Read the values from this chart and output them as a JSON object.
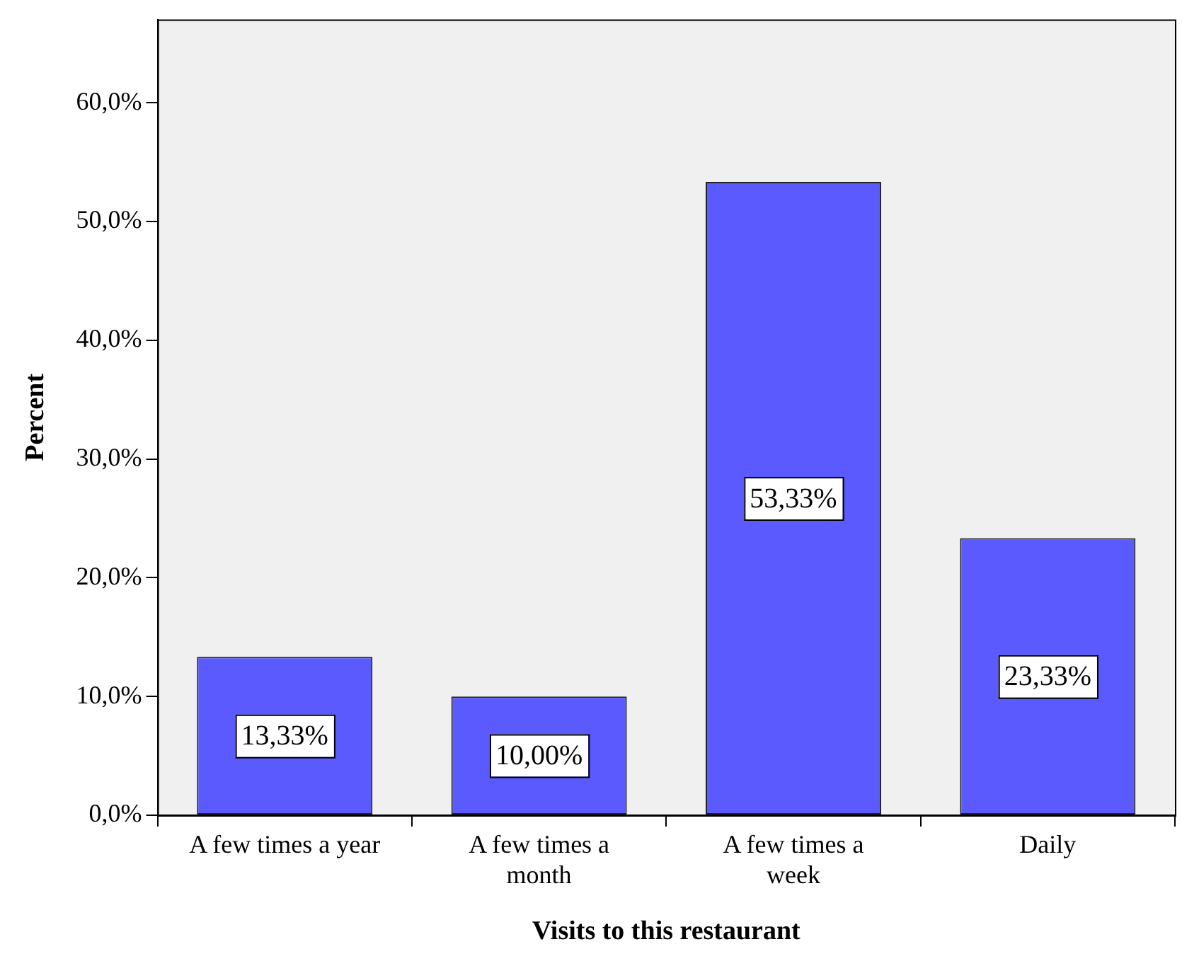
{
  "chart_data": {
    "type": "bar",
    "xlabel": "Visits to this restaurant",
    "ylabel": "Percent",
    "categories": [
      "A few times a year",
      "A few times a month",
      "A few times a week",
      "Daily"
    ],
    "values": [
      13.33,
      10.0,
      53.33,
      23.33
    ],
    "color": "#5a5aff",
    "value_labels": [
      "13,33%",
      "10,00%",
      "53,33%",
      "23,33%"
    ],
    "ylim": [
      0,
      67
    ],
    "yticks": [
      {
        "value": 0,
        "label": "0,0%"
      },
      {
        "value": 10,
        "label": "10,0%"
      },
      {
        "value": 20,
        "label": "20,0%"
      },
      {
        "value": 30,
        "label": "30,0%"
      },
      {
        "value": 40,
        "label": "40,0%"
      },
      {
        "value": 50,
        "label": "50,0%"
      },
      {
        "value": 60,
        "label": "60,0%"
      }
    ],
    "grid": false,
    "legend": false
  }
}
